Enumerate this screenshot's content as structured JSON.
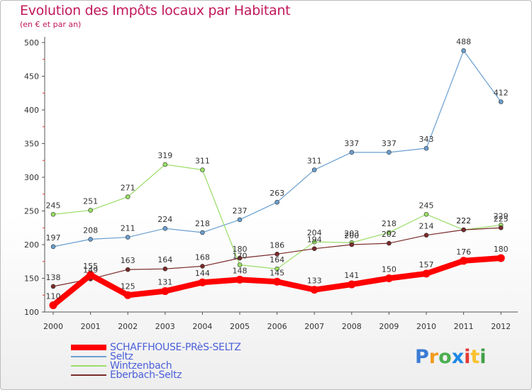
{
  "chart": {
    "title": "Evolution des Impôts locaux par Habitant",
    "subtitle": "(en € et par an)"
  },
  "chart_data": {
    "type": "line",
    "title": "Evolution des Impôts locaux par Habitant",
    "subtitle": "(en € et par an)",
    "xlabel": "",
    "ylabel": "",
    "x": [
      "2000",
      "2001",
      "2002",
      "2003",
      "2004",
      "2005",
      "2006",
      "2007",
      "2008",
      "2009",
      "2010",
      "2011",
      "2012"
    ],
    "ylim": [
      100,
      500
    ],
    "yticks": [
      100,
      150,
      200,
      250,
      300,
      350,
      400,
      450,
      500
    ],
    "grid": false,
    "legend_position": "bottom-left",
    "series": [
      {
        "name": "SCHAFFHOUSE-PRèS-SELTZ",
        "color": "#ff0000",
        "values": [
          110,
          155,
          125,
          131,
          144,
          148,
          145,
          133,
          141,
          150,
          157,
          176,
          180
        ]
      },
      {
        "name": "Seltz",
        "color": "#6a9fd0",
        "values": [
          197,
          208,
          211,
          224,
          218,
          237,
          263,
          311,
          337,
          337,
          343,
          488,
          412
        ]
      },
      {
        "name": "Wintzenbach",
        "color": "#99dd66",
        "values": [
          245,
          251,
          271,
          319,
          311,
          170,
          164,
          204,
          203,
          218,
          245,
          222,
          229
        ]
      },
      {
        "name": "Eberbach-Seltz",
        "color": "#7a2a2a",
        "values": [
          138,
          149,
          163,
          164,
          168,
          180,
          186,
          194,
          200,
          202,
          214,
          222,
          225
        ]
      }
    ]
  },
  "brand": {
    "letters": [
      "P",
      "r",
      "o",
      "x",
      "i",
      "t",
      "i"
    ],
    "colors": [
      "#3a7bd5",
      "#f29b1d",
      "#4caf50",
      "#1e88e5",
      "#e53935",
      "#fbc02d",
      "#43a047"
    ]
  }
}
